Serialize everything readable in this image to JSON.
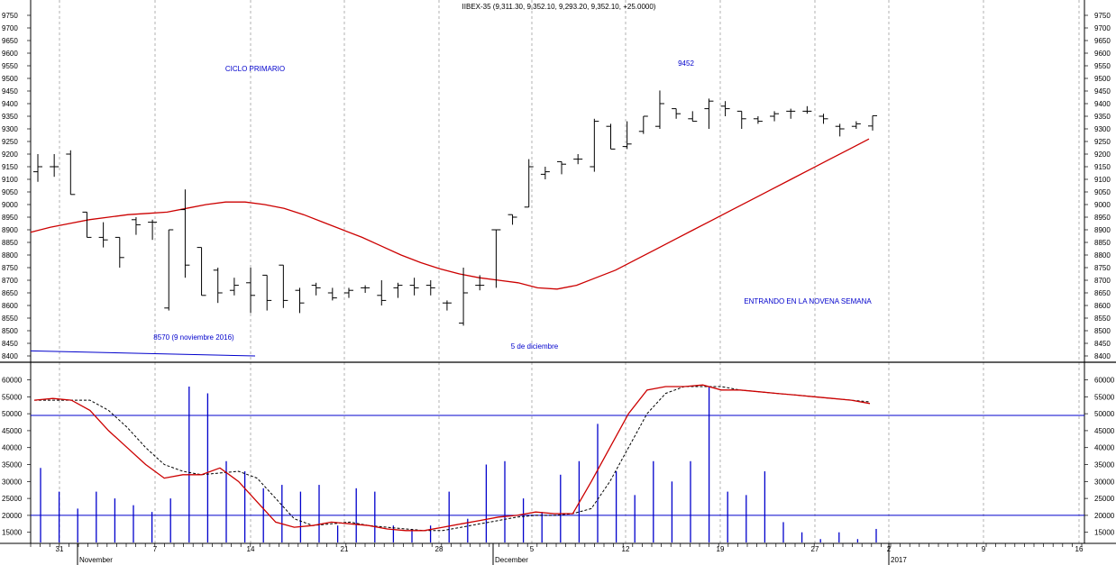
{
  "chart_data": [
    {
      "type": "ohlc",
      "title": "IIBEX-35 (9,311.30, 9,352.10, 9,293.20, 9,352.10, +25.0000)",
      "ylim": [
        8400,
        9750
      ],
      "y_ticks": [
        8400,
        8450,
        8500,
        8550,
        8600,
        8650,
        8700,
        8750,
        8800,
        8850,
        8900,
        8950,
        9000,
        9050,
        9100,
        9150,
        9200,
        9250,
        9300,
        9350,
        9400,
        9450,
        9500,
        9550,
        9600,
        9650,
        9700,
        9750
      ],
      "x_tick_labels": [
        "31",
        "7",
        "14",
        "21",
        "28",
        "5",
        "12",
        "19",
        "27",
        "2",
        "9",
        "16"
      ],
      "month_labels": [
        "November",
        "December",
        "2017"
      ],
      "annotations": {
        "cycle": "CICLO PRIMARIO",
        "peak": "9452",
        "low_nov": "8570 (9 noviembre 2016)",
        "low_dec": "5 de diciembre",
        "week": "ENTRANDO EN LA NOVENA SEMANA"
      },
      "bars": [
        {
          "o": 9130,
          "h": 9200,
          "l": 9090,
          "c": 9150
        },
        {
          "o": 9150,
          "h": 9200,
          "l": 9110,
          "c": 9150
        },
        {
          "o": 9200,
          "h": 9215,
          "l": 9040,
          "c": 9040
        },
        {
          "o": 8970,
          "h": 8970,
          "l": 8870,
          "c": 8870
        },
        {
          "o": 8870,
          "h": 8930,
          "l": 8830,
          "c": 8860
        },
        {
          "o": 8870,
          "h": 8870,
          "l": 8750,
          "c": 8790
        },
        {
          "o": 8940,
          "h": 8950,
          "l": 8880,
          "c": 8920
        },
        {
          "o": 8930,
          "h": 8940,
          "l": 8860,
          "c": 8930
        },
        {
          "o": 8590,
          "h": 8900,
          "l": 8580,
          "c": 8900
        },
        {
          "o": 8980,
          "h": 9060,
          "l": 8710,
          "c": 8760
        },
        {
          "o": 8830,
          "h": 8830,
          "l": 8640,
          "c": 8640
        },
        {
          "o": 8740,
          "h": 8750,
          "l": 8610,
          "c": 8650
        },
        {
          "o": 8660,
          "h": 8710,
          "l": 8640,
          "c": 8680
        },
        {
          "o": 8690,
          "h": 8750,
          "l": 8570,
          "c": 8640
        },
        {
          "o": 8720,
          "h": 8720,
          "l": 8580,
          "c": 8620
        },
        {
          "o": 8760,
          "h": 8760,
          "l": 8590,
          "c": 8620
        },
        {
          "o": 8660,
          "h": 8670,
          "l": 8570,
          "c": 8610
        },
        {
          "o": 8680,
          "h": 8690,
          "l": 8640,
          "c": 8670
        },
        {
          "o": 8650,
          "h": 8670,
          "l": 8620,
          "c": 8630
        },
        {
          "o": 8650,
          "h": 8670,
          "l": 8630,
          "c": 8660
        },
        {
          "o": 8670,
          "h": 8680,
          "l": 8650,
          "c": 8670
        },
        {
          "o": 8640,
          "h": 8700,
          "l": 8600,
          "c": 8620
        },
        {
          "o": 8670,
          "h": 8690,
          "l": 8630,
          "c": 8680
        },
        {
          "o": 8680,
          "h": 8710,
          "l": 8640,
          "c": 8670
        },
        {
          "o": 8680,
          "h": 8700,
          "l": 8640,
          "c": 8670
        },
        {
          "o": 8610,
          "h": 8620,
          "l": 8580,
          "c": 8610
        },
        {
          "o": 8530,
          "h": 8750,
          "l": 8520,
          "c": 8650
        },
        {
          "o": 8680,
          "h": 8720,
          "l": 8660,
          "c": 8680
        },
        {
          "o": 8900,
          "h": 8900,
          "l": 8670,
          "c": 8900
        },
        {
          "o": 8960,
          "h": 8960,
          "l": 8920,
          "c": 8950
        },
        {
          "o": 8990,
          "h": 9180,
          "l": 8990,
          "c": 9150
        },
        {
          "o": 9120,
          "h": 9150,
          "l": 9100,
          "c": 9130
        },
        {
          "o": 9170,
          "h": 9170,
          "l": 9120,
          "c": 9160
        },
        {
          "o": 9180,
          "h": 9200,
          "l": 9160,
          "c": 9180
        },
        {
          "o": 9150,
          "h": 9340,
          "l": 9130,
          "c": 9330
        },
        {
          "o": 9310,
          "h": 9320,
          "l": 9220,
          "c": 9220
        },
        {
          "o": 9230,
          "h": 9330,
          "l": 9220,
          "c": 9240
        },
        {
          "o": 9290,
          "h": 9350,
          "l": 9280,
          "c": 9350
        },
        {
          "o": 9310,
          "h": 9452,
          "l": 9300,
          "c": 9400
        },
        {
          "o": 9380,
          "h": 9380,
          "l": 9340,
          "c": 9360
        },
        {
          "o": 9340,
          "h": 9370,
          "l": 9330,
          "c": 9330
        },
        {
          "o": 9380,
          "h": 9420,
          "l": 9300,
          "c": 9410
        },
        {
          "o": 9390,
          "h": 9410,
          "l": 9350,
          "c": 9380
        },
        {
          "o": 9370,
          "h": 9370,
          "l": 9300,
          "c": 9340
        },
        {
          "o": 9340,
          "h": 9350,
          "l": 9320,
          "c": 9330
        },
        {
          "o": 9350,
          "h": 9370,
          "l": 9330,
          "c": 9360
        },
        {
          "o": 9370,
          "h": 9380,
          "l": 9340,
          "c": 9370
        },
        {
          "o": 9370,
          "h": 9390,
          "l": 9360,
          "c": 9370
        },
        {
          "o": 9350,
          "h": 9360,
          "l": 9320,
          "c": 9340
        },
        {
          "o": 9310,
          "h": 9320,
          "l": 9270,
          "c": 9300
        },
        {
          "o": 9310,
          "h": 9330,
          "l": 9300,
          "c": 9320
        },
        {
          "o": 9311.3,
          "h": 9352.1,
          "l": 9293.2,
          "c": 9352.1
        }
      ],
      "moving_average": [
        8890,
        8910,
        8925,
        8940,
        8950,
        8960,
        8965,
        8970,
        8985,
        9000,
        9010,
        9010,
        9000,
        8985,
        8960,
        8930,
        8900,
        8870,
        8835,
        8800,
        8770,
        8745,
        8725,
        8710,
        8700,
        8690,
        8670,
        8665,
        8680,
        8710,
        8740,
        8780,
        8820,
        8860,
        8900,
        8940,
        8980,
        9020,
        9060,
        9100,
        9140,
        9180,
        9220,
        9260
      ],
      "trendline": [
        [
          0,
          8420
        ],
        [
          1,
          8400
        ]
      ],
      "colors": {
        "price": "#000000",
        "ma": "#cc0000",
        "annotation": "#0000cc",
        "trend": "#0000cc"
      }
    },
    {
      "type": "volume_oscillator",
      "ylim": [
        12000,
        62000
      ],
      "y_ticks": [
        15000,
        20000,
        25000,
        30000,
        35000,
        40000,
        45000,
        50000,
        55000,
        60000
      ],
      "hlines": [
        49500,
        20000
      ],
      "volumes": [
        34000,
        27000,
        22000,
        27000,
        25000,
        23000,
        21000,
        25000,
        58000,
        56000,
        36000,
        33000,
        28000,
        29000,
        27000,
        29000,
        17000,
        28000,
        27000,
        17000,
        16000,
        17000,
        27000,
        19000,
        35000,
        36000,
        25000,
        21000,
        32000,
        36000,
        47000,
        33000,
        26000,
        36000,
        30000,
        36000,
        58000,
        27000,
        26000,
        33000,
        18000,
        15000,
        13000,
        15000,
        13000,
        16000
      ],
      "line_red": [
        54000,
        54500,
        54000,
        51000,
        45000,
        40000,
        35000,
        31000,
        32000,
        32000,
        34000,
        30000,
        24000,
        18000,
        16500,
        17000,
        18000,
        17500,
        17000,
        16000,
        15500,
        15500,
        16500,
        17500,
        18500,
        19500,
        20000,
        21000,
        20500,
        20500,
        30000,
        40000,
        50000,
        57000,
        58000,
        58000,
        58500,
        57000,
        57000,
        56500,
        56000,
        55500,
        55000,
        54500,
        54000,
        53000
      ],
      "line_black": [
        54000,
        54000,
        54000,
        54000,
        51000,
        46000,
        40000,
        35000,
        33000,
        32000,
        32500,
        33000,
        31000,
        25000,
        19000,
        17000,
        17500,
        18000,
        17000,
        16500,
        16000,
        15500,
        15500,
        16500,
        17500,
        18500,
        19500,
        20000,
        20000,
        20500,
        22000,
        30000,
        40000,
        50000,
        56000,
        58000,
        58000,
        58000,
        57000,
        56500,
        56000,
        55500,
        55000,
        54500,
        54000,
        53500
      ],
      "colors": {
        "volume": "#0000cc",
        "red": "#cc0000",
        "black": "#000000",
        "hline": "#0000cc"
      }
    }
  ]
}
